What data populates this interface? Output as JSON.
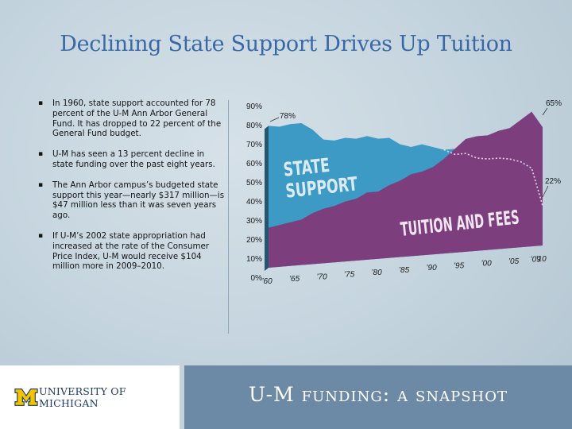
{
  "slide": {
    "title": "Declining State Support Drives Up Tuition",
    "bullets": [
      "In 1960, state support accounted for 78 percent of the U-M Ann Arbor General Fund. It has dropped to 22 percent of the General Fund budget.",
      "U-M has seen a 13 percent decline in state funding over the past eight years.",
      "The Ann Arbor campus’s budgeted state support this year—nearly $317 million—is $47 million less than it was seven years ago.",
      "If U-M’s 2002 state appropriation had increased at the rate of the Consumer Price Index, U-M would receive $104 million more in 2009–2010."
    ]
  },
  "footer": {
    "logo_text": "UNIVERSITY OF MICHIGAN",
    "caption": "U-M funding: a snapshot"
  },
  "colors": {
    "state_support": "#3c9ac4",
    "tuition_and_fees": "#7d3e7e",
    "title": "#3a68a6",
    "footer_band": "#6c8aa5",
    "logo_maize": "#f2c500"
  },
  "chart_data": {
    "type": "area",
    "title": "",
    "xlabel": "",
    "ylabel": "",
    "ylim": [
      0,
      90
    ],
    "y_ticks": [
      "0%",
      "10%",
      "20%",
      "30%",
      "40%",
      "50%",
      "60%",
      "70%",
      "80%",
      "90%"
    ],
    "x_ticks": [
      "’60",
      "’65",
      "’70",
      "’75",
      "’80",
      "’85",
      "’90",
      "’95",
      "’00",
      "’05",
      "’09",
      "’10"
    ],
    "x_tick_years": [
      1960,
      1965,
      1970,
      1975,
      1980,
      1985,
      1990,
      1995,
      2000,
      2005,
      2009,
      2010
    ],
    "series": [
      {
        "name": "STATE SUPPORT",
        "x": [
          1960,
          1962,
          1964,
          1966,
          1968,
          1970,
          1972,
          1974,
          1976,
          1978,
          1980,
          1982,
          1984,
          1986,
          1988,
          1990,
          1992,
          1994,
          1996,
          1998,
          2000,
          2002,
          2004,
          2006,
          2008,
          2010
        ],
        "values": [
          78,
          77,
          78,
          78,
          74,
          68,
          67,
          68,
          67,
          68,
          66,
          66,
          62,
          60,
          61,
          59,
          57,
          54,
          54,
          51,
          50,
          50,
          49,
          47,
          43,
          22
        ]
      },
      {
        "name": "TUITION AND FEES",
        "x": [
          1960,
          1962,
          1964,
          1966,
          1968,
          1970,
          1972,
          1974,
          1976,
          1978,
          1980,
          1982,
          1984,
          1986,
          1988,
          1990,
          1992,
          1994,
          1996,
          1998,
          2000,
          2002,
          2004,
          2006,
          2008,
          2010
        ],
        "values": [
          22,
          23,
          24,
          25,
          28,
          30,
          31,
          33,
          34,
          37,
          37,
          40,
          42,
          45,
          46,
          48,
          52,
          57,
          62,
          63,
          63,
          65,
          66,
          70,
          74,
          65
        ]
      }
    ],
    "annotations": [
      {
        "text": "78%",
        "x": 1960,
        "y": 78
      },
      {
        "text": "65%",
        "x": 2010,
        "y": 65
      },
      {
        "text": "22%",
        "x": 2010,
        "y": 22
      }
    ]
  }
}
